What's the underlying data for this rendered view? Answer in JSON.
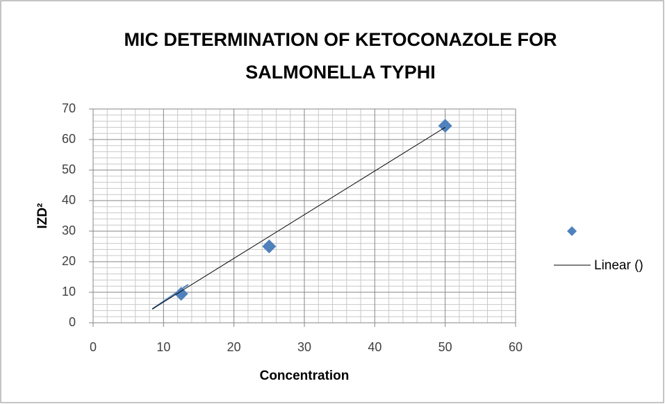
{
  "chart_data": {
    "type": "scatter",
    "title": [
      "MIC DETERMINATION  OF KETOCONAZOLE FOR",
      "SALMONELLA TYPHI"
    ],
    "xlabel": "Concentration",
    "ylabel": "IZD²",
    "series": [
      {
        "color": "#4f81bd",
        "x": [
          12.5,
          25,
          50
        ],
        "values": [
          9.5,
          25,
          64.5
        ]
      }
    ],
    "trendline": {
      "name": "Linear ()",
      "color": "#000000",
      "x": [
        8.4,
        50
      ],
      "values": [
        4.5,
        64
      ]
    },
    "segment": {
      "color": "#4f81bd",
      "x": [
        8.4,
        13.5
      ],
      "values": [
        4.5,
        12.5
      ]
    },
    "xlim": [
      0,
      60
    ],
    "xticks": [
      0,
      10,
      20,
      30,
      40,
      50,
      60
    ],
    "ylim": [
      0,
      70
    ],
    "yticks": [
      0,
      10,
      20,
      30,
      40,
      50,
      60,
      70
    ],
    "xminorticks": [
      2,
      4,
      6,
      8,
      12,
      14,
      16,
      18,
      22,
      24,
      26,
      28,
      32,
      34,
      36,
      38,
      42,
      44,
      46,
      48,
      52,
      54,
      56,
      58
    ],
    "yminorticks": [
      2,
      4,
      6,
      8,
      12,
      14,
      16,
      18,
      22,
      24,
      26,
      28,
      32,
      34,
      36,
      38,
      42,
      44,
      46,
      48,
      52,
      54,
      56,
      58,
      62,
      64,
      66,
      68
    ],
    "grid": true,
    "legend": "right"
  }
}
